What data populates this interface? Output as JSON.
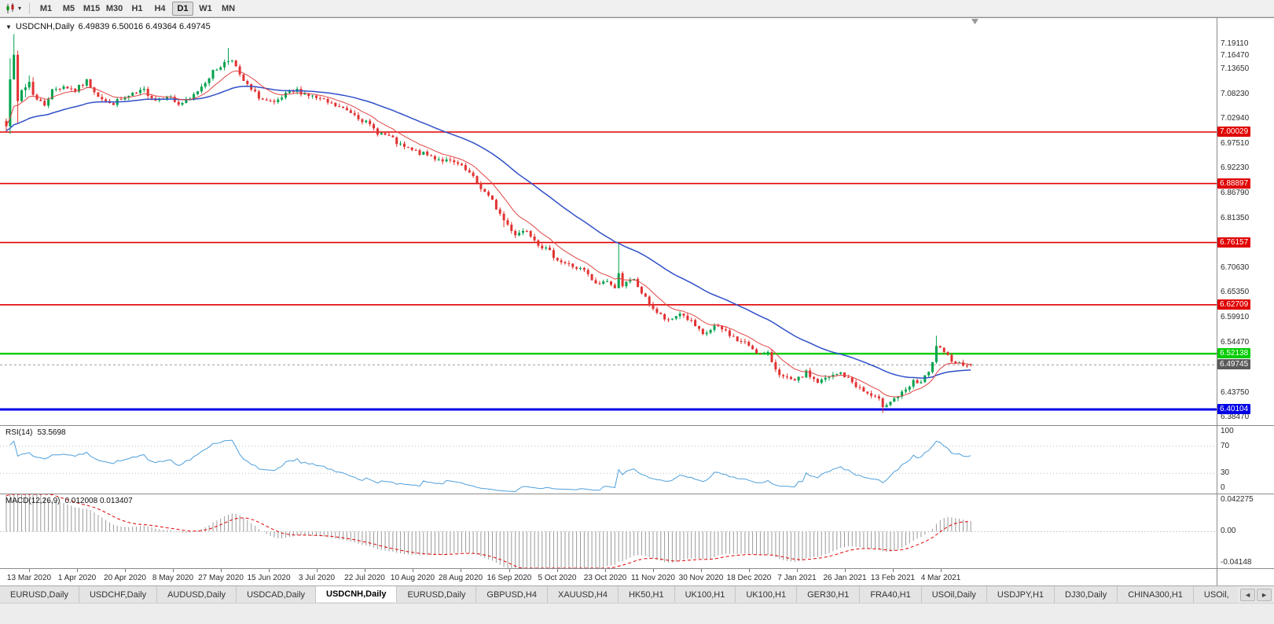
{
  "toolbar": {
    "timeframes": [
      {
        "label": "M1",
        "active": false
      },
      {
        "label": "M5",
        "active": false
      },
      {
        "label": "M15",
        "active": false
      },
      {
        "label": "M30",
        "active": false
      },
      {
        "label": "H1",
        "active": false
      },
      {
        "label": "H4",
        "active": false
      },
      {
        "label": "D1",
        "active": true
      },
      {
        "label": "W1",
        "active": false
      },
      {
        "label": "MN",
        "active": false
      }
    ]
  },
  "icons": {
    "dropdown_caret": "▾",
    "one_click": "▼",
    "tab_scroll_left": "◄",
    "tab_scroll_right": "►"
  },
  "chart": {
    "title": "USDCNH,Daily",
    "ohlc_text": "6.49839 6.50016 6.49364 6.49745"
  },
  "rsi_panel": {
    "label": "RSI(14)",
    "value": "53.5698",
    "axis_labels": [
      100,
      70,
      30,
      0
    ]
  },
  "macd_panel": {
    "label": "MACD(12,26,9)",
    "values": "0.012008 0.013407",
    "axis_labels": [
      "0.042275",
      "0.00",
      "-0.04148"
    ]
  },
  "tabs": [
    {
      "label": "EURUSD,Daily",
      "active": false
    },
    {
      "label": "USDCHF,Daily",
      "active": false
    },
    {
      "label": "AUDUSD,Daily",
      "active": false
    },
    {
      "label": "USDCAD,Daily",
      "active": false
    },
    {
      "label": "USDCNH,Daily",
      "active": true
    },
    {
      "label": "EURUSD,Daily",
      "active": false
    },
    {
      "label": "GBPUSD,H4",
      "active": false
    },
    {
      "label": "XAUUSD,H4",
      "active": false
    },
    {
      "label": "HK50,H1",
      "active": false
    },
    {
      "label": "UK100,H1",
      "active": false
    },
    {
      "label": "UK100,H1",
      "active": false
    },
    {
      "label": "GER30,H1",
      "active": false
    },
    {
      "label": "FRA40,H1",
      "active": false
    },
    {
      "label": "USOil,Daily",
      "active": false
    },
    {
      "label": "USDJPY,H1",
      "active": false
    },
    {
      "label": "DJ30,Daily",
      "active": false
    },
    {
      "label": "CHINA300,H1",
      "active": false
    },
    {
      "label": "USOil,",
      "active": false
    }
  ],
  "colors": {
    "up_candle": "#00a24c",
    "down_candle": "#e23232",
    "ma_fast": "#e04545",
    "ma_slow": "#3050c8",
    "hline_red": "#e00000",
    "hline_green": "#00cc00",
    "hline_blue": "#0000e6",
    "current_price_box": "#5a5a5a",
    "rsi_line": "#4fa0dc",
    "macd_hist": "#9a9a9a",
    "macd_signal": "#e00000"
  },
  "chart_data": {
    "type": "candlestick",
    "symbol": "USDCNH",
    "timeframe": "Daily",
    "current_ohlc": {
      "open": 6.49839,
      "high": 6.50016,
      "low": 6.49364,
      "close": 6.49745
    },
    "current_price": 6.49745,
    "price_axis": {
      "top": 7.2464,
      "bottom": 6.3671,
      "gridline_labels": [
        7.1911,
        7.1647,
        7.1365,
        7.0823,
        7.0294,
        6.9751,
        6.9223,
        6.8679,
        6.8135,
        6.7063,
        6.6535,
        6.5991,
        6.5447,
        6.4375,
        6.3847
      ]
    },
    "horizontal_lines": [
      {
        "value": 7.00029,
        "type": "resistance",
        "color_key": "red"
      },
      {
        "value": 6.88897,
        "type": "resistance",
        "color_key": "red"
      },
      {
        "value": 6.76157,
        "type": "resistance",
        "color_key": "red"
      },
      {
        "value": 6.62709,
        "type": "resistance",
        "color_key": "red"
      },
      {
        "value": 6.52138,
        "type": "level",
        "color_key": "green"
      },
      {
        "value": 6.40104,
        "type": "support",
        "color_key": "blue"
      }
    ],
    "date_labels": [
      "13 Mar 2020",
      "1 Apr 2020",
      "20 Apr 2020",
      "8 May 2020",
      "27 May 2020",
      "15 Jun 2020",
      "3 Jul 2020",
      "22 Jul 2020",
      "10 Aug 2020",
      "28 Aug 2020",
      "16 Sep 2020",
      "5 Oct 2020",
      "23 Oct 2020",
      "11 Nov 2020",
      "30 Nov 2020",
      "18 Dec 2020",
      "7 Jan 2021",
      "26 Jan 2021",
      "13 Feb 2021",
      "4 Mar 2021"
    ],
    "candle_count": 253,
    "close_path_anchors": [
      [
        0,
        7.03
      ],
      [
        1,
        7.13
      ],
      [
        2,
        7.15
      ],
      [
        3,
        7.06
      ],
      [
        4,
        7.09
      ],
      [
        6,
        7.11
      ],
      [
        8,
        7.07
      ],
      [
        10,
        7.06
      ],
      [
        12,
        7.09
      ],
      [
        15,
        7.1
      ],
      [
        18,
        7.09
      ],
      [
        21,
        7.11
      ],
      [
        24,
        7.08
      ],
      [
        27,
        7.06
      ],
      [
        30,
        7.07
      ],
      [
        33,
        7.08
      ],
      [
        36,
        7.09
      ],
      [
        39,
        7.07
      ],
      [
        42,
        7.08
      ],
      [
        45,
        7.06
      ],
      [
        48,
        7.07
      ],
      [
        51,
        7.1
      ],
      [
        54,
        7.13
      ],
      [
        57,
        7.15
      ],
      [
        59,
        7.16
      ],
      [
        61,
        7.12
      ],
      [
        64,
        7.09
      ],
      [
        67,
        7.07
      ],
      [
        70,
        7.06
      ],
      [
        73,
        7.08
      ],
      [
        76,
        7.09
      ],
      [
        79,
        7.08
      ],
      [
        82,
        7.07
      ],
      [
        85,
        7.06
      ],
      [
        88,
        7.05
      ],
      [
        91,
        7.04
      ],
      [
        94,
        7.02
      ],
      [
        97,
        7.0
      ],
      [
        100,
        6.99
      ],
      [
        103,
        6.97
      ],
      [
        106,
        6.96
      ],
      [
        110,
        6.95
      ],
      [
        114,
        6.94
      ],
      [
        118,
        6.93
      ],
      [
        121,
        6.91
      ],
      [
        124,
        6.88
      ],
      [
        127,
        6.85
      ],
      [
        130,
        6.81
      ],
      [
        133,
        6.78
      ],
      [
        136,
        6.79
      ],
      [
        139,
        6.76
      ],
      [
        142,
        6.74
      ],
      [
        145,
        6.72
      ],
      [
        148,
        6.71
      ],
      [
        151,
        6.7
      ],
      [
        154,
        6.67
      ],
      [
        157,
        6.68
      ],
      [
        159,
        6.66
      ],
      [
        160,
        6.7
      ],
      [
        161,
        6.67
      ],
      [
        164,
        6.68
      ],
      [
        167,
        6.64
      ],
      [
        170,
        6.61
      ],
      [
        173,
        6.59
      ],
      [
        176,
        6.61
      ],
      [
        179,
        6.59
      ],
      [
        182,
        6.56
      ],
      [
        185,
        6.58
      ],
      [
        188,
        6.57
      ],
      [
        191,
        6.55
      ],
      [
        194,
        6.54
      ],
      [
        197,
        6.52
      ],
      [
        199,
        6.52
      ],
      [
        201,
        6.49
      ],
      [
        203,
        6.47
      ],
      [
        206,
        6.46
      ],
      [
        209,
        6.48
      ],
      [
        212,
        6.46
      ],
      [
        215,
        6.47
      ],
      [
        218,
        6.48
      ],
      [
        221,
        6.46
      ],
      [
        224,
        6.44
      ],
      [
        226,
        6.43
      ],
      [
        228,
        6.42
      ],
      [
        229,
        6.41
      ],
      [
        231,
        6.42
      ],
      [
        233,
        6.43
      ],
      [
        235,
        6.44
      ],
      [
        237,
        6.46
      ],
      [
        239,
        6.46
      ],
      [
        241,
        6.48
      ],
      [
        242,
        6.5
      ],
      [
        243,
        6.54
      ],
      [
        244,
        6.53
      ],
      [
        245,
        6.52
      ],
      [
        247,
        6.51
      ],
      [
        249,
        6.5
      ],
      [
        250,
        6.5
      ],
      [
        252,
        6.4975
      ]
    ],
    "wick_spikes": [
      [
        1,
        0.04
      ],
      [
        2,
        0.03
      ],
      [
        58,
        0.025
      ],
      [
        160,
        0.06
      ],
      [
        243,
        0.02
      ]
    ],
    "low_spikes": [
      [
        3,
        0.03
      ],
      [
        130,
        0.01
      ],
      [
        229,
        0.012
      ]
    ],
    "indicators": {
      "ma_fast": {
        "period": 10
      },
      "ma_slow": {
        "period": 40
      },
      "rsi": {
        "period": 14,
        "current": 53.5698,
        "levels": [
          70,
          30
        ]
      },
      "macd": {
        "fast": 12,
        "slow": 26,
        "signal": 9,
        "current_macd": 0.012008,
        "current_signal": 0.013407,
        "axis_max": 0.042275,
        "axis_min": -0.04148
      }
    }
  }
}
